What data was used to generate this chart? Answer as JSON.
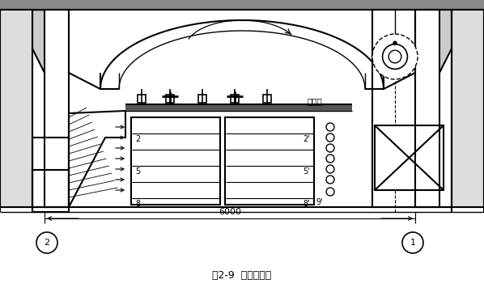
{
  "title": "图2-9  鱼类冻结间",
  "bg_color": "#ffffff",
  "line_color": "#000000",
  "fig_width": 5.98,
  "fig_height": 3.56,
  "dpi": 100
}
